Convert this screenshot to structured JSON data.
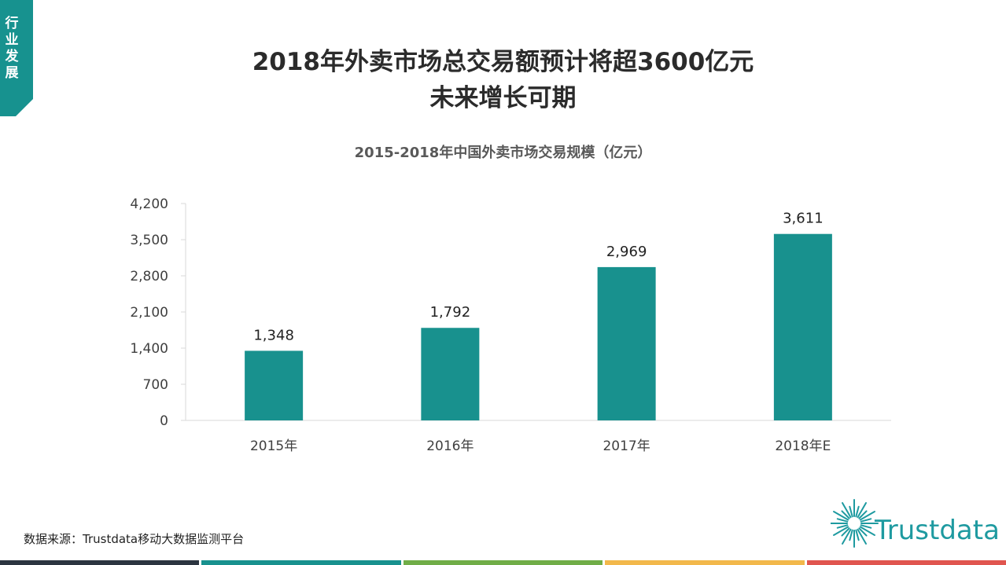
{
  "section_tag": "行业发展",
  "headline": {
    "line1": "2018年外卖市场总交易额预计将超3600亿元",
    "line2": "未来增长可期"
  },
  "source_note": "数据来源：Trustdata移动大数据监测平台",
  "logo": {
    "text": "Trustdata"
  },
  "colors": {
    "ribbon": "#17928f",
    "bar": "#18918e",
    "footer": [
      "#2c3540",
      "#18918e",
      "#70ad47",
      "#f2b84b",
      "#e0554f"
    ]
  },
  "chart_data": {
    "type": "bar",
    "title": "2015-2018年中国外卖市场交易规模（亿元）",
    "categories": [
      "2015年",
      "2016年",
      "2017年",
      "2018年E"
    ],
    "values": [
      1348,
      1792,
      2969,
      3611
    ],
    "data_labels": [
      "1,348",
      "1,792",
      "2,969",
      "3,611"
    ],
    "ylim": [
      0,
      4200
    ],
    "yticks": [
      "0",
      "700",
      "1,400",
      "2,100",
      "2,800",
      "3,500",
      "4,200"
    ],
    "grid": false,
    "legend": "none"
  }
}
